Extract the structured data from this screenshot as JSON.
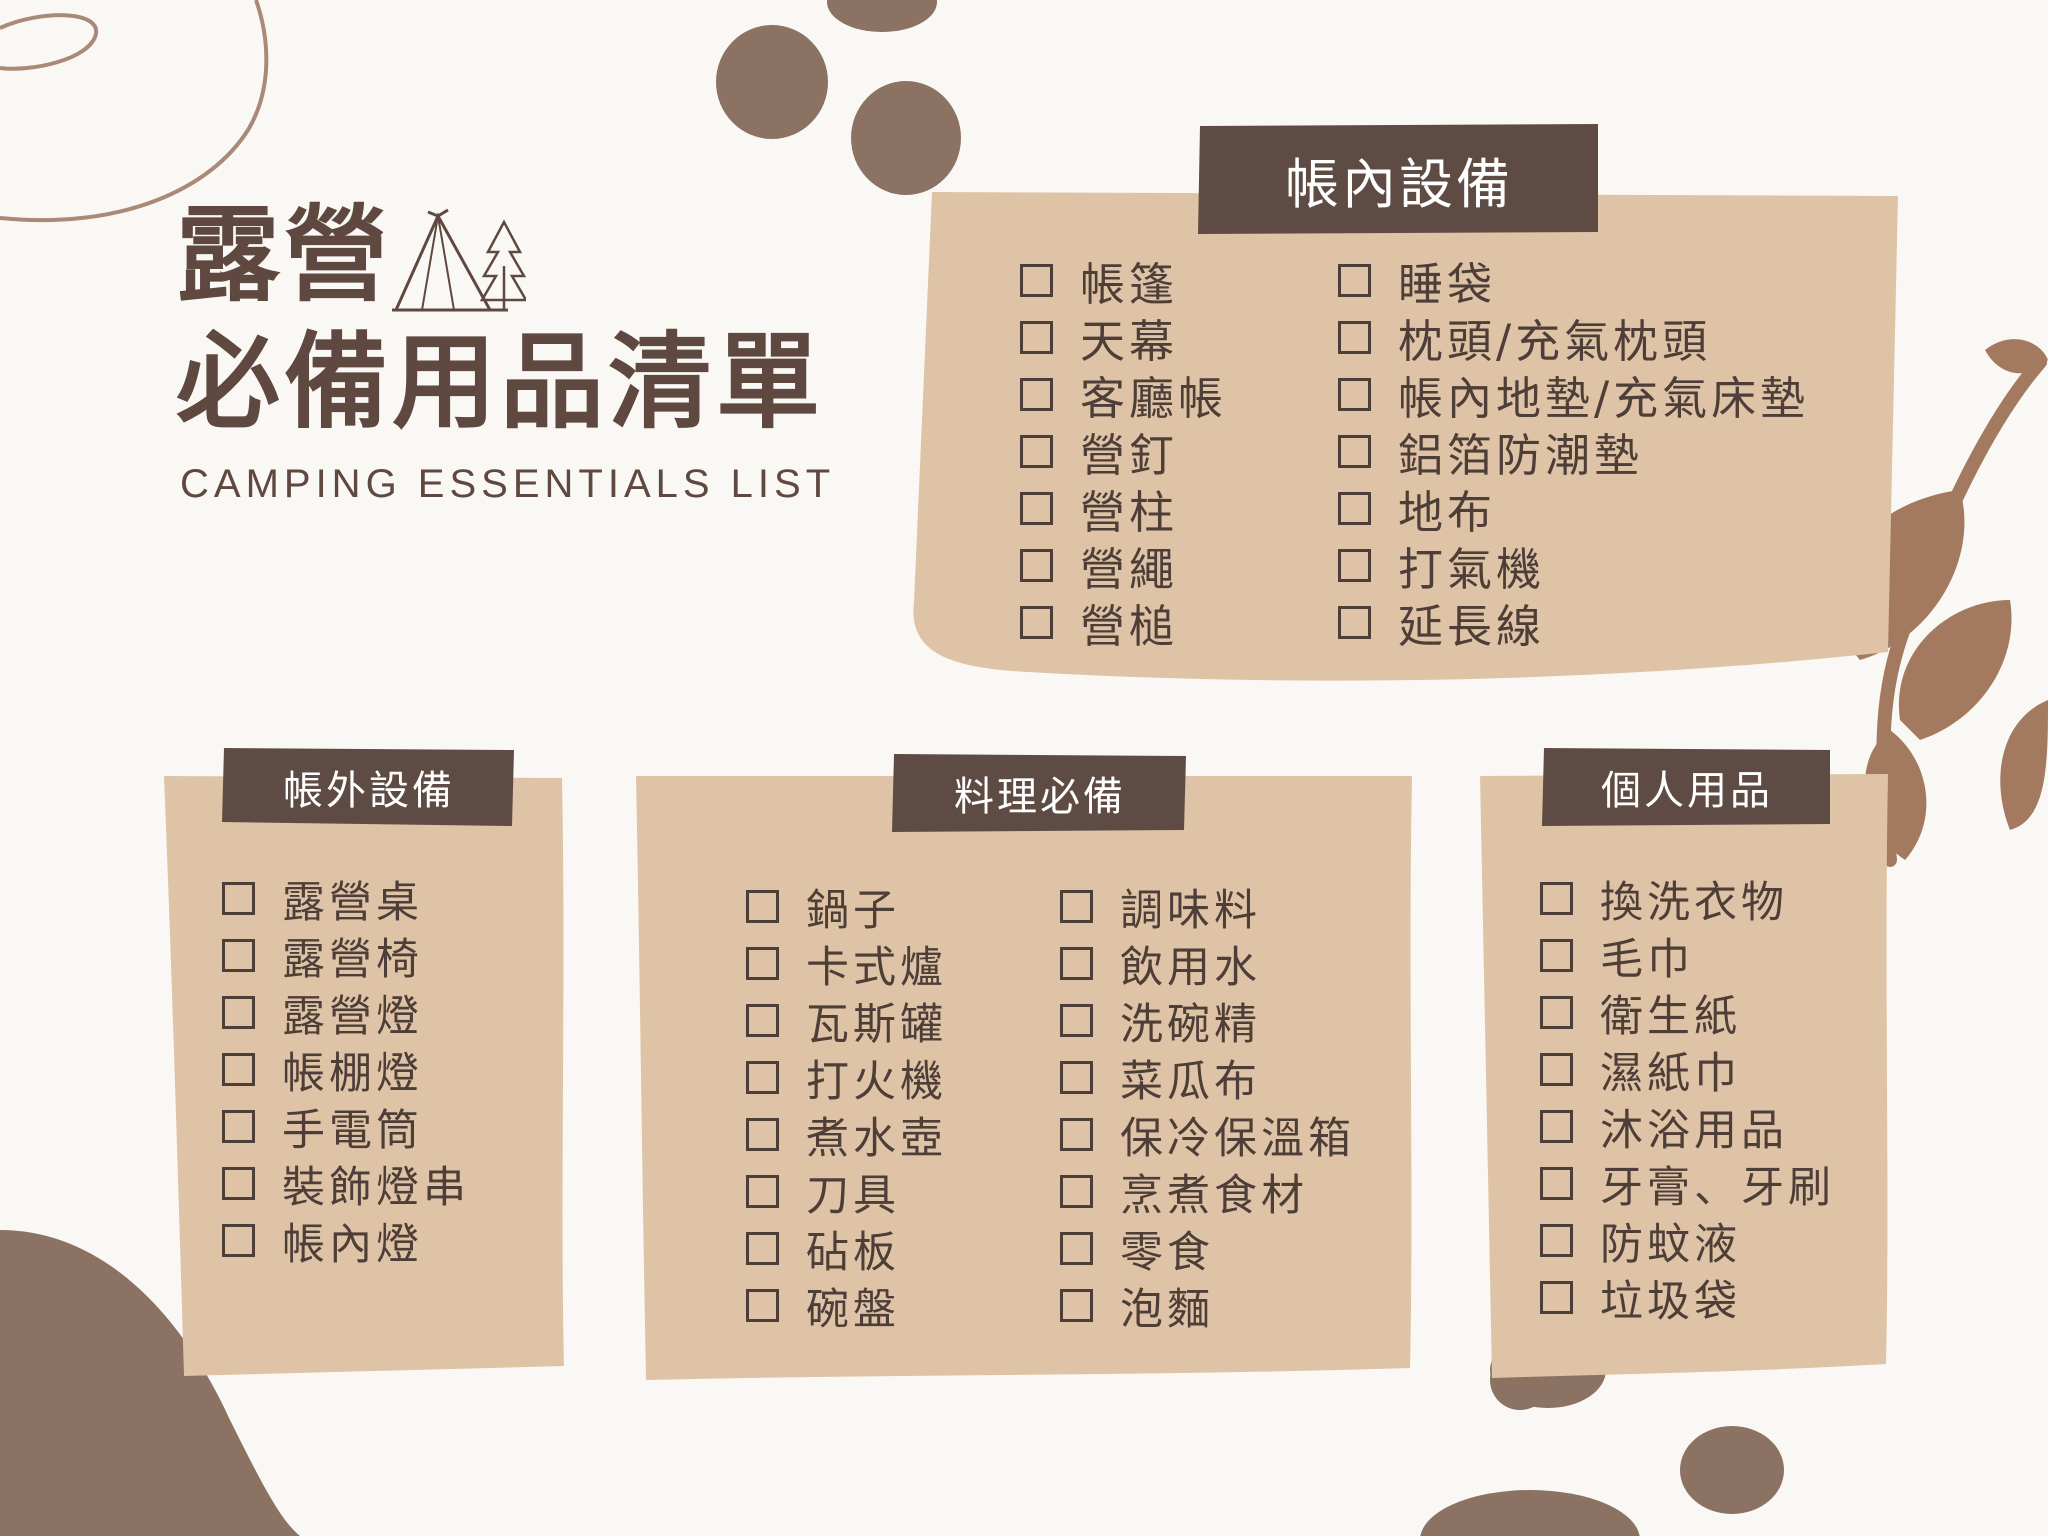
{
  "colors": {
    "background": "#faf8f4",
    "card": "#dfc3a7",
    "tag": "#5e4c44",
    "text": "#4e3e38",
    "decor_dark": "#8b7263",
    "decor_leaf": "#a37a60"
  },
  "header": {
    "title_line1": "露營",
    "title_line2": "必備用品清單",
    "subtitle": "CAMPING ESSENTIALS LIST",
    "icon": "tent-tree-icon"
  },
  "sections": {
    "tent_inside": {
      "title": "帳內設備",
      "col1": [
        "帳篷",
        "天幕",
        "客廳帳",
        "營釘",
        "營柱",
        "營繩",
        "營槌"
      ],
      "col2": [
        "睡袋",
        "枕頭/充氣枕頭",
        "帳內地墊/充氣床墊",
        "鋁箔防潮墊",
        "地布",
        "打氣機",
        "延長線"
      ]
    },
    "tent_outside": {
      "title": "帳外設備",
      "items": [
        "露營桌",
        "露營椅",
        "露營燈",
        "帳棚燈",
        "手電筒",
        "裝飾燈串",
        "帳內燈"
      ]
    },
    "cooking": {
      "title": "料理必備",
      "col1": [
        "鍋子",
        "卡式爐",
        "瓦斯罐",
        "打火機",
        "煮水壺",
        "刀具",
        "砧板",
        "碗盤"
      ],
      "col2": [
        "調味料",
        "飲用水",
        "洗碗精",
        "菜瓜布",
        "保冷保溫箱",
        "烹煮食材",
        "零食",
        "泡麵"
      ]
    },
    "personal": {
      "title": "個人用品",
      "items": [
        "換洗衣物",
        "毛巾",
        "衛生紙",
        "濕紙巾",
        "沐浴用品",
        "牙膏、牙刷",
        "防蚊液",
        "垃圾袋"
      ]
    }
  }
}
